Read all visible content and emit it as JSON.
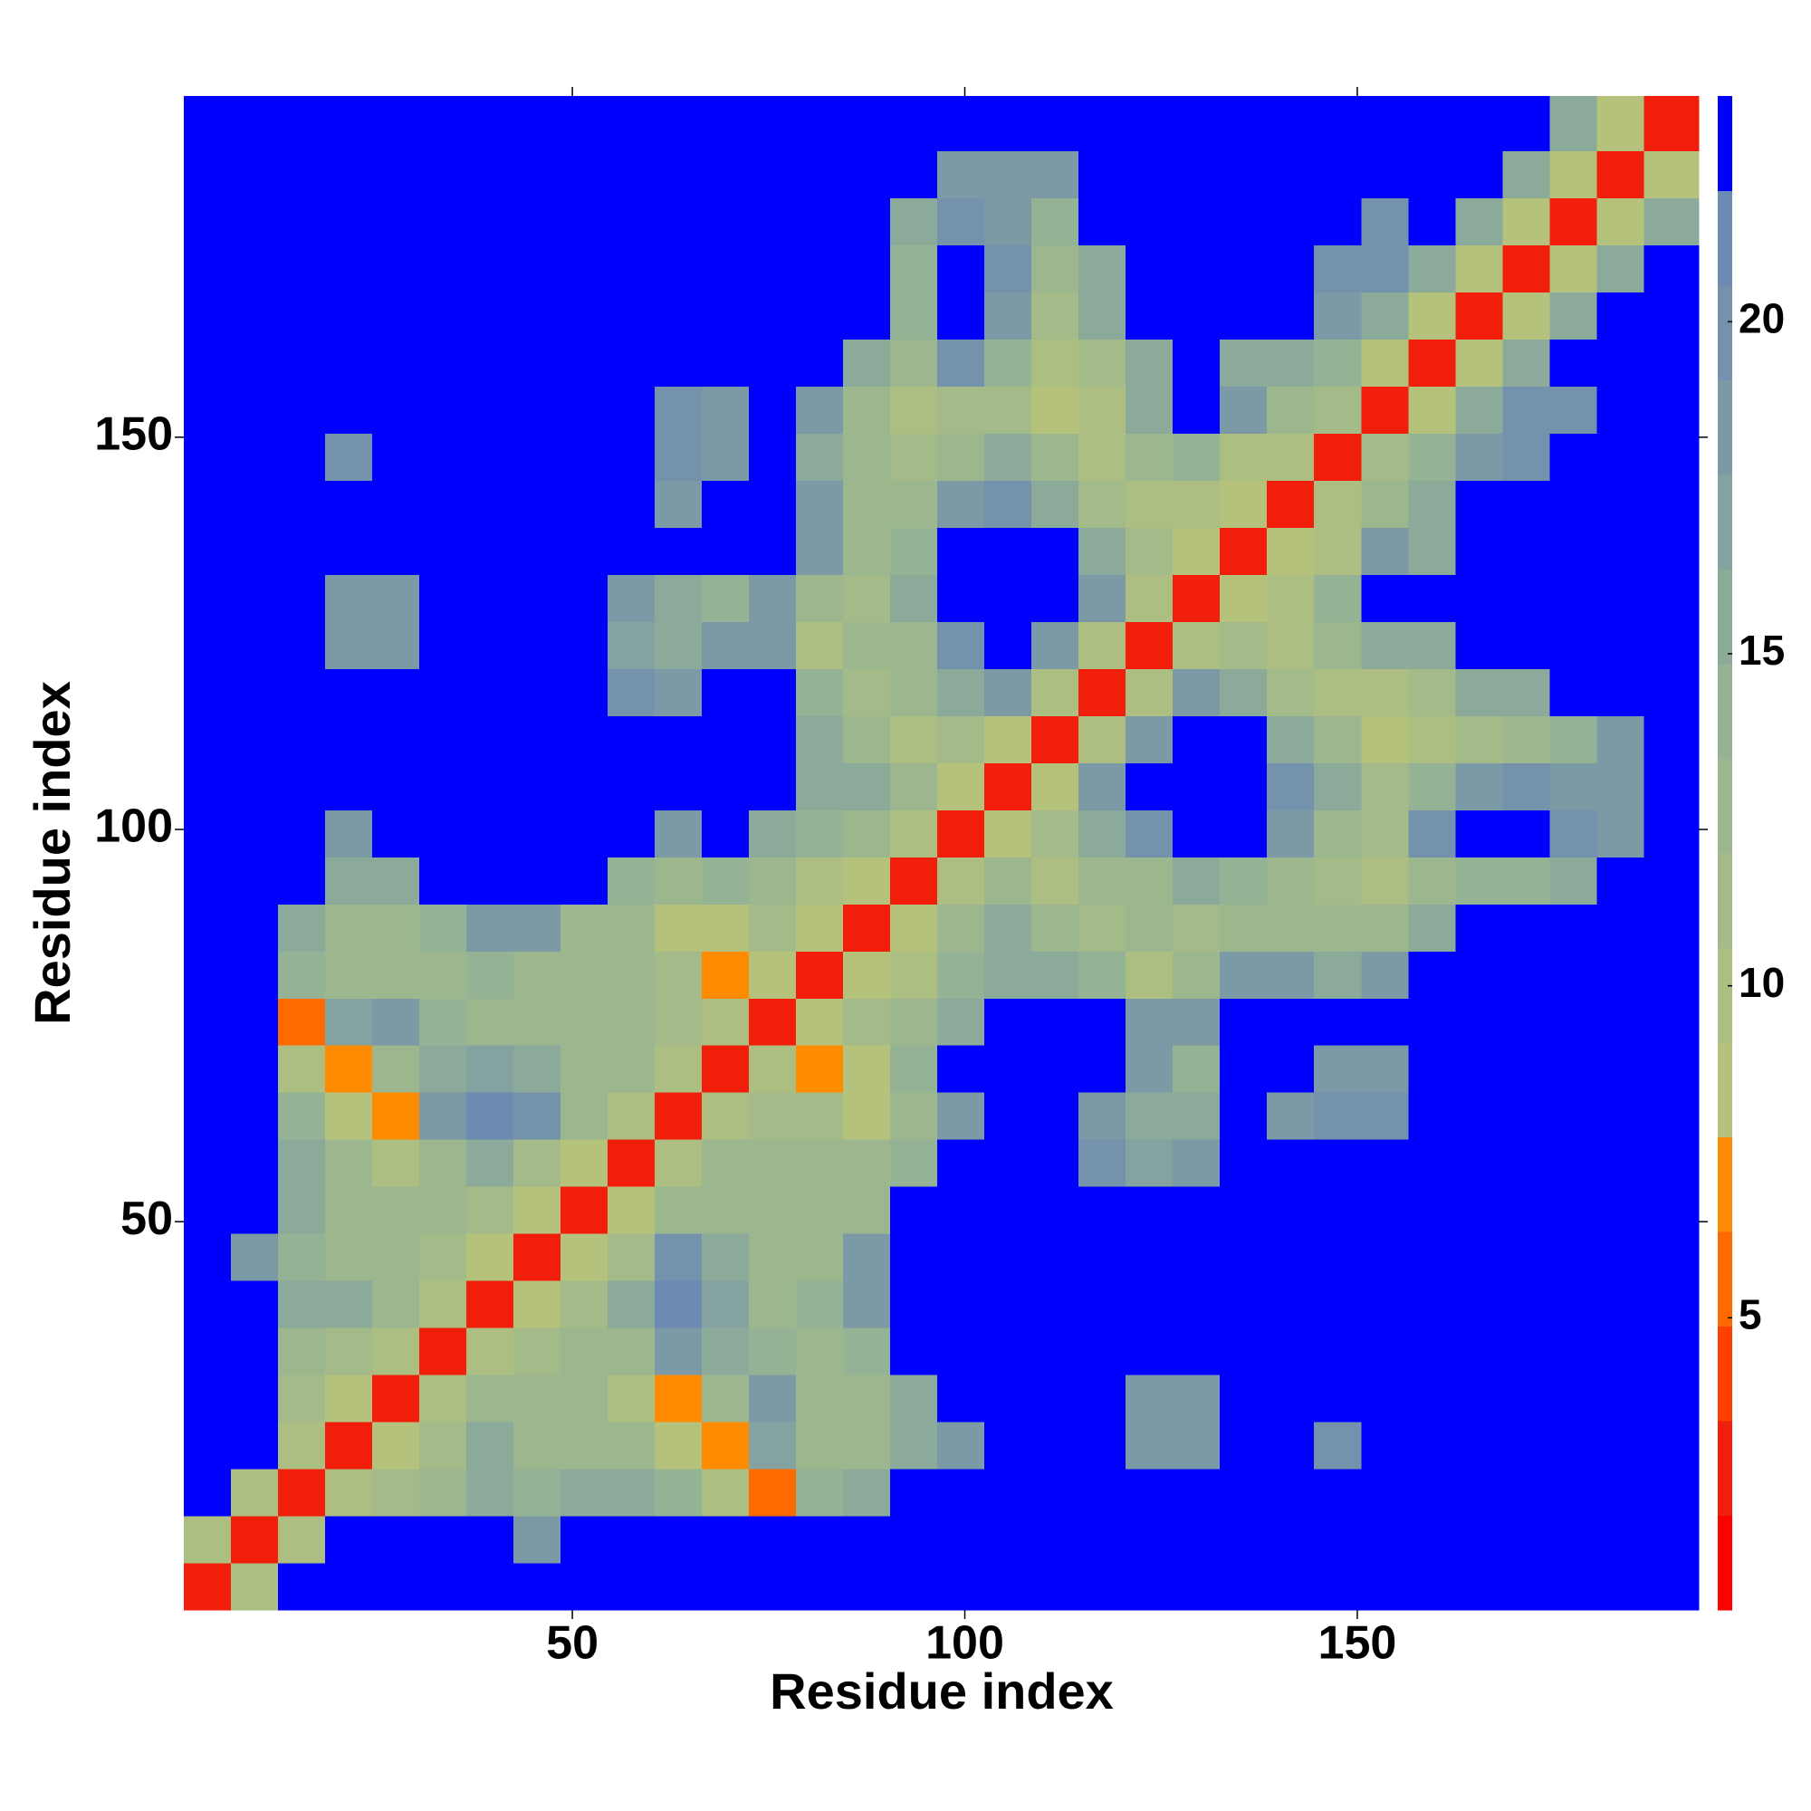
{
  "chart_data": {
    "type": "heatmap",
    "x_label": "Residue index",
    "y_label": "Residue index",
    "xlim": [
      0.5,
      193.5
    ],
    "ylim": [
      0.5,
      193.5
    ],
    "xticks": [
      50,
      100,
      150
    ],
    "yticks": [
      50,
      100,
      150
    ],
    "x_bins": [
      0.5,
      6.5,
      12.5,
      18.5,
      24.5,
      30.5,
      36.5,
      42.5,
      48.5,
      54.5,
      60.5,
      66.5,
      72.5,
      78.5,
      84.5,
      90.5,
      96.5,
      102.5,
      108.5,
      114.5,
      120.5,
      126.5,
      132.5,
      138.5,
      144.5,
      150.5,
      156.5,
      162.5,
      168.5,
      174.5,
      180.5,
      186.5,
      193.5
    ],
    "y_bins": [
      0.5,
      6.5,
      12.5,
      18.5,
      24.5,
      30.5,
      36.5,
      42.5,
      48.5,
      54.5,
      60.5,
      66.5,
      72.5,
      78.5,
      84.5,
      90.5,
      96.5,
      102.5,
      108.5,
      114.5,
      120.5,
      126.5,
      132.5,
      138.5,
      144.5,
      150.5,
      156.5,
      162.5,
      168.5,
      174.5,
      180.5,
      186.5,
      193.5
    ],
    "clim": [
      0.6,
      23.4
    ],
    "colorbar_ticks": [
      5,
      10,
      15,
      20
    ],
    "colors": [
      "#ff0000",
      "#f01e0a",
      "#ff4000",
      "#ff6a00",
      "#ff8c00",
      "#b4c27c",
      "#acbe82",
      "#a4ba88",
      "#9cb68e",
      "#94b294",
      "#8caa9a",
      "#84a2a0",
      "#7c9aa6",
      "#7492ac",
      "#6c8ab2",
      "#0000ff"
    ],
    "z": [
      [
        3,
        10,
        25,
        25,
        25,
        25,
        25,
        25,
        25,
        25,
        25,
        25,
        25,
        25,
        25,
        25,
        25,
        25,
        25,
        25,
        25,
        25,
        25,
        25,
        25,
        25,
        25,
        25,
        25,
        25,
        25,
        25
      ],
      [
        10,
        3,
        10,
        25,
        25,
        25,
        25,
        18,
        25,
        25,
        25,
        25,
        25,
        25,
        25,
        25,
        25,
        25,
        25,
        25,
        25,
        25,
        25,
        25,
        25,
        25,
        25,
        25,
        25,
        25,
        25,
        25
      ],
      [
        25,
        10,
        3,
        10,
        11,
        13,
        15,
        14,
        16,
        16,
        14,
        10,
        6,
        14,
        16,
        25,
        25,
        25,
        25,
        25,
        25,
        25,
        25,
        25,
        25,
        25,
        25,
        25,
        25,
        25,
        25,
        25
      ],
      [
        25,
        25,
        10,
        3,
        9,
        11,
        15,
        13,
        13,
        12,
        9,
        7,
        17,
        12,
        13,
        15,
        19,
        25,
        25,
        25,
        19,
        19,
        25,
        25,
        20,
        25,
        25,
        25,
        25,
        25,
        25,
        25
      ],
      [
        25,
        25,
        11,
        9,
        3,
        10,
        12,
        12,
        12,
        10,
        7,
        12,
        18,
        13,
        13,
        15,
        25,
        25,
        25,
        25,
        19,
        19,
        25,
        25,
        25,
        25,
        25,
        25,
        25,
        25,
        25,
        25
      ],
      [
        25,
        25,
        13,
        11,
        10,
        3,
        10,
        11,
        12,
        13,
        19,
        16,
        14,
        13,
        14,
        25,
        25,
        25,
        25,
        25,
        25,
        25,
        25,
        25,
        25,
        25,
        25,
        25,
        25,
        25,
        25,
        25
      ],
      [
        25,
        25,
        15,
        15,
        12,
        10,
        3,
        9,
        11,
        15,
        21,
        17,
        13,
        14,
        18,
        25,
        25,
        25,
        25,
        25,
        25,
        25,
        25,
        25,
        25,
        25,
        25,
        25,
        25,
        25,
        25,
        25
      ],
      [
        25,
        18,
        14,
        13,
        12,
        11,
        9,
        3,
        9,
        11,
        20,
        16,
        12,
        13,
        18,
        25,
        25,
        25,
        25,
        25,
        25,
        25,
        25,
        25,
        25,
        25,
        25,
        25,
        25,
        25,
        25,
        25
      ],
      [
        25,
        25,
        16,
        13,
        12,
        12,
        11,
        9,
        3,
        9,
        12,
        13,
        13,
        12,
        12,
        25,
        25,
        25,
        25,
        25,
        25,
        25,
        25,
        25,
        25,
        25,
        25,
        25,
        25,
        25,
        25,
        25
      ],
      [
        25,
        25,
        16,
        12,
        10,
        13,
        15,
        11,
        9,
        3,
        10,
        12,
        12,
        12,
        12,
        14,
        25,
        25,
        25,
        20,
        17,
        18,
        25,
        25,
        25,
        25,
        25,
        25,
        25,
        25,
        25,
        25
      ],
      [
        25,
        25,
        14,
        9,
        7,
        19,
        21,
        20,
        12,
        10,
        3,
        10,
        11,
        11,
        8,
        12,
        18,
        25,
        25,
        18,
        15,
        16,
        25,
        19,
        20,
        20,
        25,
        25,
        25,
        25,
        25,
        25
      ],
      [
        25,
        25,
        10,
        7,
        12,
        16,
        17,
        16,
        13,
        12,
        10,
        3,
        10,
        7,
        8,
        14,
        25,
        25,
        25,
        25,
        18,
        14,
        25,
        25,
        19,
        19,
        25,
        25,
        25,
        25,
        25,
        25
      ],
      [
        25,
        25,
        6,
        17,
        18,
        14,
        13,
        12,
        13,
        12,
        11,
        10,
        3,
        8,
        11,
        13,
        16,
        25,
        25,
        25,
        18,
        18,
        25,
        25,
        25,
        25,
        25,
        25,
        25,
        25,
        25,
        25
      ],
      [
        25,
        25,
        14,
        12,
        13,
        13,
        14,
        13,
        12,
        12,
        11,
        7,
        8,
        3,
        8,
        10,
        14,
        16,
        16,
        14,
        10,
        12,
        18,
        18,
        16,
        18,
        25,
        25,
        25,
        25,
        25,
        25
      ],
      [
        25,
        25,
        16,
        13,
        13,
        14,
        18,
        18,
        12,
        12,
        8,
        8,
        11,
        8,
        3,
        9,
        13,
        15,
        13,
        11,
        12,
        11,
        12,
        12,
        12,
        13,
        16,
        25,
        25,
        25,
        25,
        25
      ],
      [
        25,
        25,
        25,
        15,
        15,
        25,
        25,
        25,
        25,
        14,
        12,
        14,
        13,
        10,
        9,
        3,
        10,
        12,
        10,
        12,
        13,
        15,
        14,
        13,
        11,
        10,
        13,
        14,
        14,
        16,
        25,
        25
      ],
      [
        25,
        25,
        25,
        19,
        25,
        25,
        25,
        25,
        25,
        25,
        18,
        25,
        16,
        14,
        13,
        10,
        3,
        9,
        11,
        15,
        20,
        23,
        23,
        18,
        13,
        11,
        20,
        22,
        22,
        20,
        18,
        25
      ],
      [
        25,
        25,
        25,
        25,
        25,
        25,
        25,
        25,
        25,
        25,
        25,
        25,
        25,
        16,
        15,
        12,
        9,
        3,
        9,
        18,
        22,
        23,
        23,
        20,
        15,
        11,
        14,
        18,
        20,
        18,
        18,
        25
      ],
      [
        25,
        25,
        25,
        25,
        25,
        25,
        25,
        25,
        25,
        25,
        25,
        25,
        25,
        16,
        13,
        10,
        11,
        9,
        3,
        10,
        18,
        23,
        23,
        16,
        12,
        8,
        10,
        11,
        12,
        14,
        18,
        25
      ],
      [
        25,
        25,
        25,
        25,
        25,
        25,
        25,
        25,
        25,
        20,
        18,
        25,
        25,
        14,
        11,
        12,
        15,
        18,
        10,
        3,
        10,
        18,
        16,
        11,
        10,
        10,
        11,
        16,
        16,
        25,
        25,
        25
      ],
      [
        25,
        25,
        25,
        19,
        19,
        25,
        25,
        25,
        25,
        17,
        15,
        18,
        18,
        10,
        12,
        13,
        20,
        22,
        18,
        10,
        3,
        10,
        11,
        10,
        12,
        15,
        16,
        25,
        25,
        25,
        25,
        25
      ],
      [
        25,
        25,
        25,
        19,
        19,
        25,
        25,
        25,
        25,
        18,
        16,
        14,
        18,
        12,
        11,
        15,
        23,
        23,
        23,
        18,
        10,
        3,
        8,
        10,
        14,
        25,
        25,
        25,
        25,
        25,
        25,
        25
      ],
      [
        25,
        25,
        25,
        25,
        25,
        25,
        25,
        25,
        25,
        25,
        25,
        25,
        25,
        18,
        12,
        14,
        23,
        23,
        23,
        16,
        11,
        8,
        3,
        9,
        10,
        18,
        16,
        25,
        25,
        25,
        25,
        25
      ],
      [
        25,
        25,
        25,
        25,
        25,
        25,
        25,
        25,
        25,
        25,
        19,
        25,
        25,
        18,
        12,
        13,
        18,
        20,
        16,
        11,
        10,
        10,
        9,
        3,
        10,
        13,
        15,
        25,
        25,
        25,
        25,
        25
      ],
      [
        25,
        25,
        25,
        20,
        25,
        25,
        25,
        25,
        25,
        25,
        20,
        19,
        25,
        16,
        12,
        11,
        13,
        15,
        12,
        10,
        12,
        14,
        10,
        10,
        3,
        11,
        14,
        18,
        20,
        25,
        25,
        25
      ],
      [
        25,
        25,
        25,
        25,
        25,
        25,
        25,
        25,
        25,
        25,
        20,
        19,
        25,
        18,
        13,
        10,
        11,
        11,
        8,
        10,
        15,
        25,
        18,
        13,
        11,
        3,
        9,
        15,
        20,
        20,
        25,
        25
      ],
      [
        25,
        25,
        25,
        25,
        25,
        25,
        25,
        25,
        25,
        25,
        25,
        25,
        25,
        25,
        16,
        13,
        20,
        14,
        10,
        11,
        16,
        25,
        16,
        15,
        14,
        9,
        3,
        9,
        15,
        25,
        25,
        25
      ],
      [
        25,
        25,
        25,
        25,
        25,
        25,
        25,
        25,
        25,
        25,
        25,
        25,
        25,
        25,
        25,
        14,
        22,
        18,
        11,
        16,
        25,
        25,
        25,
        25,
        18,
        15,
        9,
        3,
        9,
        15,
        25,
        25
      ],
      [
        25,
        25,
        25,
        25,
        25,
        25,
        25,
        25,
        25,
        25,
        25,
        25,
        25,
        25,
        25,
        14,
        22,
        20,
        12,
        16,
        25,
        25,
        25,
        25,
        20,
        20,
        15,
        9,
        3,
        9,
        15,
        25
      ],
      [
        25,
        25,
        25,
        25,
        25,
        25,
        25,
        25,
        25,
        25,
        25,
        25,
        25,
        25,
        25,
        16,
        20,
        18,
        14,
        25,
        25,
        25,
        25,
        25,
        25,
        20,
        25,
        15,
        9,
        3,
        9,
        15
      ],
      [
        25,
        25,
        25,
        25,
        25,
        25,
        25,
        25,
        25,
        25,
        25,
        25,
        25,
        25,
        25,
        25,
        18,
        18,
        18,
        25,
        25,
        25,
        25,
        25,
        25,
        25,
        25,
        25,
        15,
        9,
        3,
        9
      ],
      [
        25,
        25,
        25,
        25,
        25,
        25,
        25,
        25,
        25,
        25,
        25,
        25,
        25,
        25,
        25,
        25,
        25,
        25,
        25,
        25,
        25,
        25,
        25,
        25,
        25,
        25,
        25,
        25,
        25,
        15,
        9,
        3
      ]
    ]
  }
}
